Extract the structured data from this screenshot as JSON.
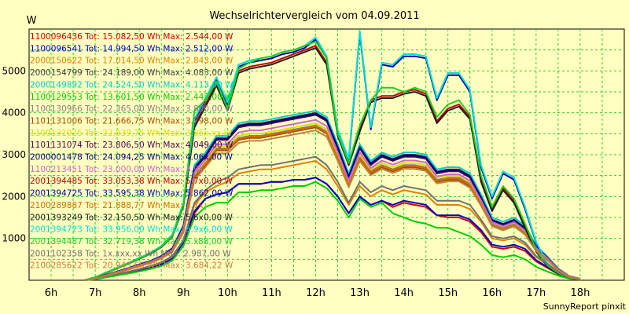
{
  "chart_data": {
    "type": "line",
    "title": "Wechselrichtervergleich vom 04.09.2011",
    "ylabel": "W",
    "footer": "SunnyReport pinxit",
    "ylim": [
      0,
      6000
    ],
    "xlim": [
      5.5,
      19.0
    ],
    "grid": true,
    "legend_position": "top-left",
    "yticks": [
      1000,
      2000,
      3000,
      4000,
      5000
    ],
    "xticks": [
      6,
      7,
      8,
      9,
      10,
      11,
      12,
      13,
      14,
      15,
      16,
      17,
      18
    ],
    "xtick_labels": [
      "6h",
      "7h",
      "8h",
      "9h",
      "10h",
      "11h",
      "12h",
      "13h",
      "14h",
      "15h",
      "16h",
      "17h",
      "18h"
    ],
    "x": [
      6.75,
      7.0,
      7.25,
      7.5,
      7.75,
      8.0,
      8.25,
      8.5,
      8.75,
      9.0,
      9.25,
      9.5,
      9.75,
      10.0,
      10.25,
      10.5,
      10.75,
      11.0,
      11.25,
      11.5,
      11.75,
      12.0,
      12.25,
      12.5,
      12.75,
      13.0,
      13.25,
      13.5,
      13.75,
      14.0,
      14.25,
      14.5,
      14.75,
      15.0,
      15.25,
      15.5,
      15.75,
      16.0,
      16.25,
      16.5,
      16.75,
      17.0,
      17.25,
      17.5,
      17.75,
      18.0
    ],
    "series": [
      {
        "name": "1100096436",
        "label": "1100096436 Tot: 15.082,50 Wh Max: 2.544,00 W",
        "color": "#cc0000",
        "values": [
          0,
          30,
          80,
          130,
          180,
          240,
          300,
          380,
          520,
          900,
          1600,
          1950,
          2050,
          2100,
          2300,
          2300,
          2300,
          2350,
          2350,
          2400,
          2400,
          2450,
          2300,
          2000,
          1600,
          2000,
          1800,
          1900,
          1750,
          1850,
          1800,
          1750,
          1550,
          1500,
          1500,
          1400,
          1150,
          800,
          750,
          800,
          700,
          450,
          300,
          150,
          60,
          20
        ]
      },
      {
        "name": "1100096541",
        "label": "1100096541 Tot: 14.994,50 Wh Max: 2.512,00 W",
        "color": "#0000cc",
        "values": [
          0,
          30,
          80,
          130,
          180,
          240,
          300,
          380,
          520,
          900,
          1650,
          1950,
          2050,
          2100,
          2300,
          2300,
          2300,
          2350,
          2350,
          2400,
          2400,
          2450,
          2300,
          2000,
          1600,
          2000,
          1800,
          1900,
          1800,
          1900,
          1850,
          1800,
          1550,
          1550,
          1550,
          1450,
          1200,
          850,
          800,
          850,
          750,
          480,
          320,
          160,
          60,
          20
        ]
      },
      {
        "name": "2000150622",
        "label": "2000150622 Tot: 17.014,50 Wh Max: 2.843,00 W",
        "color": "#e08000",
        "values": [
          0,
          35,
          90,
          150,
          200,
          260,
          330,
          420,
          560,
          950,
          1800,
          2100,
          2250,
          2350,
          2550,
          2600,
          2650,
          2650,
          2700,
          2750,
          2800,
          2850,
          2650,
          2250,
          1800,
          2250,
          2000,
          2150,
          2050,
          2150,
          2100,
          2050,
          1800,
          1800,
          1800,
          1700,
          1400,
          1000,
          950,
          1000,
          850,
          550,
          380,
          190,
          70,
          25
        ]
      },
      {
        "name": "2000154799",
        "label": "2000154799 Tot: 24.189,00 Wh Max: 4.083,00 W",
        "color": "#404040",
        "values": [
          0,
          50,
          130,
          210,
          290,
          380,
          460,
          580,
          760,
          1300,
          2700,
          3000,
          3400,
          3400,
          3700,
          3750,
          3750,
          3800,
          3850,
          3900,
          3950,
          4000,
          3850,
          3200,
          2500,
          3200,
          2800,
          3000,
          2900,
          3000,
          3000,
          2950,
          2600,
          2650,
          2650,
          2500,
          2000,
          1450,
          1350,
          1450,
          1250,
          800,
          550,
          270,
          100,
          35
        ]
      },
      {
        "name": "2000149892",
        "label": "2000149892 Tot: 24.524,50 Wh Max: 4.113,00 W",
        "color": "#00cccc",
        "values": [
          0,
          50,
          130,
          210,
          290,
          380,
          460,
          580,
          770,
          1320,
          2750,
          3050,
          3450,
          3450,
          3750,
          3800,
          3800,
          3850,
          3900,
          3950,
          4000,
          4050,
          3900,
          3250,
          2550,
          3250,
          2850,
          3050,
          2950,
          3050,
          3050,
          3000,
          2650,
          2700,
          2700,
          2550,
          2050,
          1500,
          1400,
          1500,
          1300,
          830,
          570,
          280,
          100,
          35
        ]
      },
      {
        "name": "1100129553",
        "label": "1100129553 Tot: 13.601,50 Wh Max: 2.442,00 W",
        "color": "#00cc00",
        "values": [
          0,
          25,
          70,
          115,
          160,
          210,
          270,
          340,
          470,
          820,
          1500,
          1750,
          1850,
          1850,
          2100,
          2100,
          2150,
          2150,
          2200,
          2250,
          2250,
          2350,
          2200,
          1900,
          1500,
          1950,
          1750,
          1850,
          1600,
          1500,
          1400,
          1350,
          1250,
          1250,
          1150,
          1050,
          850,
          600,
          550,
          600,
          500,
          320,
          210,
          110,
          40,
          15
        ]
      },
      {
        "name": "1100130966",
        "label": "1100130966 Tot: 22.365,00 Wh Max: 3.800,00 W",
        "color": "#808080",
        "values": [
          0,
          45,
          120,
          195,
          270,
          350,
          430,
          540,
          710,
          1200,
          2500,
          2800,
          3150,
          3150,
          3400,
          3450,
          3450,
          3500,
          3550,
          3600,
          3650,
          3700,
          3550,
          2950,
          2300,
          2950,
          2600,
          2750,
          2650,
          2750,
          2750,
          2700,
          2400,
          2450,
          2450,
          2300,
          1850,
          1350,
          1250,
          1350,
          1150,
          740,
          510,
          250,
          90,
          30
        ]
      },
      {
        "name": "1101131006",
        "label": "1101131006 Tot: 21.666,75 Wh Max: 3.798,00 W",
        "color": "#a05000",
        "values": [
          0,
          45,
          115,
          190,
          260,
          340,
          420,
          530,
          700,
          1150,
          2450,
          2750,
          3100,
          3100,
          3350,
          3400,
          3400,
          3450,
          3500,
          3550,
          3600,
          3650,
          3500,
          2900,
          2250,
          2900,
          2550,
          2700,
          2600,
          2700,
          2700,
          2650,
          2350,
          2400,
          2400,
          2250,
          1800,
          1300,
          1200,
          1300,
          1100,
          710,
          490,
          240,
          90,
          30
        ]
      },
      {
        "name": "1100131025",
        "label": "1100131025 Tot: 22.839,75 Wh Max: 3.85x,xx W",
        "color": "#dddd00",
        "values": [
          0,
          45,
          120,
          195,
          270,
          355,
          435,
          545,
          720,
          1220,
          2550,
          2850,
          3200,
          3200,
          3450,
          3500,
          3500,
          3550,
          3600,
          3650,
          3700,
          3750,
          3600,
          3000,
          2350,
          3000,
          2650,
          2800,
          2700,
          2800,
          2800,
          2750,
          2450,
          2500,
          2500,
          2350,
          1900,
          1380,
          1280,
          1380,
          1180,
          760,
          520,
          260,
          90,
          30
        ]
      },
      {
        "name": "1101131074",
        "label": "1101131074 Tot: 23.806,50 Wh Max: 4.049,00 W",
        "color": "#500050",
        "values": [
          0,
          48,
          125,
          205,
          285,
          370,
          450,
          570,
          750,
          1280,
          2650,
          2950,
          3350,
          3350,
          3650,
          3700,
          3700,
          3750,
          3800,
          3850,
          3900,
          3950,
          3800,
          3150,
          2450,
          3150,
          2750,
          2950,
          2850,
          2950,
          2950,
          2900,
          2550,
          2600,
          2600,
          2450,
          1950,
          1420,
          1320,
          1420,
          1220,
          790,
          540,
          265,
          95,
          32
        ]
      },
      {
        "name": "2000001478",
        "label": "2000001478 Tot: 24.094,25 Wh Max: 4.06x,00 W",
        "color": "#000080",
        "values": [
          0,
          50,
          128,
          208,
          288,
          375,
          455,
          575,
          760,
          1290,
          2680,
          2980,
          3380,
          3380,
          3680,
          3730,
          3730,
          3780,
          3830,
          3880,
          3930,
          3980,
          3830,
          3180,
          2480,
          3180,
          2780,
          2980,
          2880,
          2980,
          2980,
          2930,
          2580,
          2630,
          2630,
          2480,
          1980,
          1440,
          1340,
          1440,
          1240,
          800,
          550,
          270,
          98,
          33
        ]
      },
      {
        "name": "1100213451",
        "label": "1100213451 Tot: 23.000,00 Wh Max: 3.9x",
        "color": "#cc66cc",
        "values": [
          0,
          46,
          120,
          198,
          275,
          360,
          440,
          555,
          730,
          1240,
          2580,
          2880,
          3250,
          3250,
          3530,
          3580,
          3580,
          3630,
          3680,
          3730,
          3780,
          3830,
          3680,
          3060,
          2380,
          3060,
          2680,
          2860,
          2760,
          2860,
          2860,
          2810,
          2480,
          2530,
          2530,
          2380,
          1910,
          1390,
          1290,
          1390,
          1190,
          770,
          530,
          260,
          93,
          31
        ]
      },
      {
        "name": "2001394485",
        "label": "2001394485 Tot: 33.053,38 Wh Max: 5.7x0,00 W",
        "color": "#c00000",
        "values": [
          0,
          70,
          180,
          290,
          400,
          520,
          640,
          800,
          1060,
          1800,
          3700,
          4200,
          4700,
          4100,
          5000,
          5100,
          5150,
          5200,
          5300,
          5400,
          5500,
          5600,
          5200,
          3500,
          2800,
          3600,
          4300,
          4400,
          4400,
          4500,
          4550,
          4450,
          3800,
          4100,
          4200,
          3900,
          2400,
          1700,
          2200,
          1900,
          1300,
          700,
          350,
          170,
          60,
          20
        ]
      },
      {
        "name": "2001394725",
        "label": "2001394725 Tot: 33.595,38 Wh Max: 5.862,00 W",
        "color": "#0000aa",
        "values": [
          0,
          72,
          185,
          295,
          410,
          530,
          650,
          810,
          1080,
          1830,
          3800,
          4300,
          4800,
          4200,
          5100,
          5200,
          5250,
          5300,
          5400,
          5450,
          5550,
          5750,
          5300,
          3550,
          2850,
          5900,
          3600,
          5150,
          5100,
          5350,
          5350,
          5300,
          4300,
          4900,
          4900,
          4500,
          2700,
          1950,
          2550,
          2400,
          1700,
          900,
          400,
          180,
          60,
          20
        ]
      },
      {
        "name": "2100289887",
        "label": "2100289887 Tot: 21.888,77 Wh Max: 3.7x",
        "color": "#d07000",
        "values": [
          0,
          44,
          115,
          190,
          262,
          345,
          425,
          535,
          705,
          1180,
          2480,
          2780,
          3130,
          3130,
          3380,
          3430,
          3430,
          3480,
          3530,
          3580,
          3630,
          3680,
          3530,
          2930,
          2280,
          2930,
          2580,
          2730,
          2630,
          2730,
          2730,
          2680,
          2380,
          2430,
          2430,
          2280,
          1830,
          1320,
          1220,
          1320,
          1120,
          720,
          500,
          245,
          88,
          30
        ]
      },
      {
        "name": "2001393249",
        "label": "2001393249 Tot: 32.150,50 Wh Max: 5.6x0,00 W",
        "color": "#202020",
        "values": [
          0,
          68,
          175,
          285,
          395,
          510,
          630,
          790,
          1040,
          1770,
          3650,
          4150,
          4650,
          4050,
          4950,
          5050,
          5100,
          5150,
          5250,
          5350,
          5450,
          5550,
          5150,
          3450,
          2750,
          3550,
          4250,
          4350,
          4350,
          4450,
          4500,
          4400,
          3750,
          4050,
          4150,
          3850,
          2350,
          1650,
          2150,
          1850,
          1250,
          680,
          340,
          165,
          58,
          19
        ]
      },
      {
        "name": "2001394723",
        "label": "2001394723 Tot: 33.956,00 Wh Max: 5.9x6,00 W",
        "color": "#00dddd",
        "values": [
          0,
          73,
          188,
          300,
          415,
          535,
          655,
          820,
          1090,
          1850,
          3850,
          4350,
          4850,
          4250,
          5150,
          5250,
          5300,
          5350,
          5450,
          5500,
          5600,
          5800,
          5350,
          3600,
          2900,
          5950,
          3650,
          5200,
          5150,
          5400,
          5400,
          5350,
          4350,
          4950,
          4950,
          4550,
          2750,
          2000,
          2600,
          2450,
          1750,
          920,
          410,
          185,
          62,
          21
        ]
      },
      {
        "name": "2001394487",
        "label": "2001394487 Tot: 32.719,38 Wh Max: 5.x88,00 W",
        "color": "#22cc22",
        "values": [
          0,
          70,
          180,
          290,
          400,
          520,
          640,
          800,
          1060,
          1800,
          4050,
          4300,
          4750,
          4100,
          5050,
          5200,
          5300,
          5350,
          5450,
          5500,
          5600,
          5700,
          5300,
          3500,
          2800,
          3700,
          4300,
          4600,
          4600,
          4500,
          4600,
          4500,
          3900,
          4200,
          4300,
          3950,
          2500,
          1750,
          2250,
          1950,
          1350,
          720,
          360,
          175,
          60,
          20
        ]
      },
      {
        "name": "2001102358",
        "label": "2001102358 Tot: 1x.xxx,xx Wh Max: 2.987,00 W",
        "color": "#707070",
        "values": [
          0,
          35,
          92,
          150,
          205,
          270,
          340,
          430,
          575,
          960,
          1850,
          2150,
          2350,
          2450,
          2650,
          2700,
          2750,
          2750,
          2800,
          2850,
          2900,
          2950,
          2750,
          2350,
          1850,
          2350,
          2100,
          2250,
          2150,
          2250,
          2200,
          2150,
          1900,
          1900,
          1900,
          1800,
          1450,
          1050,
          1000,
          1050,
          900,
          580,
          400,
          200,
          72,
          25
        ]
      },
      {
        "name": "2100285622",
        "label": "2100285622 Tot: 20.943,65 Wh Max: 3.684,22 W",
        "color": "#c08040",
        "values": [
          0,
          42,
          110,
          182,
          252,
          332,
          410,
          515,
          680,
          1140,
          2400,
          2700,
          3030,
          3030,
          3280,
          3330,
          3330,
          3380,
          3430,
          3480,
          3530,
          3580,
          3430,
          2850,
          2220,
          2850,
          2510,
          2660,
          2560,
          2660,
          2660,
          2610,
          2310,
          2360,
          2360,
          2210,
          1780,
          1290,
          1190,
          1290,
          1090,
          700,
          485,
          238,
          86,
          29
        ]
      }
    ]
  },
  "colors": {
    "background": "#ffffc0",
    "grid": "#33cc33",
    "axis": "#000000"
  }
}
